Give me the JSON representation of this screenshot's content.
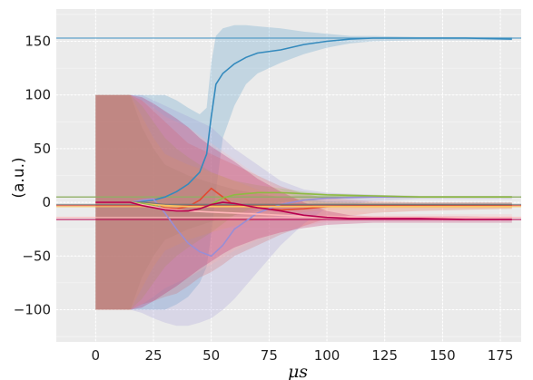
{
  "chart_data": {
    "type": "line",
    "title": "",
    "xlabel": "μs",
    "ylabel": "(a.u.)",
    "xlim": [
      -17,
      184
    ],
    "ylim": [
      -130,
      180
    ],
    "xticks": [
      0,
      25,
      50,
      75,
      100,
      125,
      150,
      175
    ],
    "yticks": [
      -100,
      -50,
      0,
      50,
      100,
      150
    ],
    "grid": true,
    "legend": "none",
    "background": "#ebebeb",
    "series": [
      {
        "color": "#348abd",
        "target": 153,
        "x": [
          0,
          15,
          20,
          25,
          30,
          35,
          40,
          45,
          48,
          50,
          52,
          55,
          60,
          65,
          70,
          80,
          90,
          100,
          110,
          120,
          140,
          160,
          180
        ],
        "y": [
          0,
          0,
          1,
          2,
          5,
          10,
          17,
          28,
          45,
          80,
          110,
          120,
          129,
          135,
          139,
          142,
          147,
          150,
          152,
          153,
          153,
          153,
          152
        ],
        "upper": [
          100,
          100,
          100,
          100,
          100,
          95,
          88,
          82,
          88,
          130,
          155,
          162,
          165,
          165,
          164,
          162,
          159,
          157,
          155,
          155,
          154,
          154,
          154
        ],
        "lower": [
          -100,
          -100,
          -100,
          -100,
          -100,
          -95,
          -88,
          -75,
          -60,
          -30,
          10,
          60,
          90,
          110,
          120,
          130,
          138,
          144,
          148,
          150,
          151,
          151,
          151
        ]
      },
      {
        "color": "#e24a33",
        "target": -3,
        "x": [
          0,
          15,
          20,
          25,
          30,
          35,
          40,
          45,
          50,
          55,
          60,
          70,
          80,
          90,
          100,
          120,
          140,
          160,
          180
        ],
        "y": [
          0,
          0,
          -2,
          -3,
          -5,
          -6,
          -4,
          2,
          13,
          5,
          -3,
          -5,
          -7,
          -6,
          -4,
          -3,
          -3,
          -3,
          -3
        ],
        "upper": [
          100,
          100,
          95,
          85,
          75,
          65,
          55,
          50,
          45,
          40,
          35,
          25,
          15,
          8,
          4,
          1,
          0,
          0,
          0
        ],
        "lower": [
          -100,
          -100,
          -95,
          -92,
          -88,
          -85,
          -78,
          -70,
          -65,
          -58,
          -50,
          -40,
          -30,
          -22,
          -15,
          -10,
          -8,
          -7,
          -6
        ]
      },
      {
        "color": "#988ed5",
        "target": 5,
        "x": [
          0,
          15,
          20,
          25,
          30,
          35,
          40,
          45,
          50,
          55,
          60,
          70,
          80,
          90,
          100,
          120,
          140,
          160,
          180
        ],
        "y": [
          0,
          0,
          2,
          3,
          -10,
          -25,
          -38,
          -46,
          -50,
          -40,
          -25,
          -10,
          -2,
          2,
          4,
          5,
          5,
          5,
          5
        ],
        "upper": [
          100,
          100,
          100,
          95,
          90,
          85,
          80,
          75,
          70,
          60,
          50,
          35,
          20,
          12,
          9,
          7,
          6,
          6,
          6
        ],
        "lower": [
          -100,
          -100,
          -103,
          -108,
          -112,
          -115,
          -115,
          -112,
          -108,
          -100,
          -90,
          -65,
          -40,
          -20,
          -5,
          1,
          3,
          3,
          3
        ]
      },
      {
        "color": "#777777",
        "target": -2,
        "x": [
          0,
          15,
          20,
          25,
          30,
          40,
          50,
          60,
          70,
          80,
          90,
          100,
          120,
          140,
          160,
          180
        ],
        "y": [
          0,
          0,
          0,
          -1,
          -2,
          -2,
          -2,
          -2,
          -2,
          -2,
          -2,
          -2,
          -2,
          -2,
          -2,
          -2
        ],
        "upper": [
          100,
          100,
          70,
          50,
          35,
          25,
          18,
          12,
          8,
          5,
          3,
          1,
          0,
          0,
          0,
          0
        ],
        "lower": [
          -100,
          -100,
          -70,
          -50,
          -35,
          -25,
          -18,
          -12,
          -8,
          -6,
          -5,
          -4,
          -3,
          -3,
          -3,
          -3
        ]
      },
      {
        "color": "#fbc15e",
        "target": -4,
        "x": [
          0,
          15,
          20,
          25,
          30,
          40,
          50,
          60,
          70,
          80,
          90,
          100,
          120,
          140,
          160,
          180
        ],
        "y": [
          0,
          0,
          -1,
          -2,
          -3,
          -4,
          -4,
          -4,
          -4,
          -4,
          -4,
          -4,
          -4,
          -4,
          -4,
          -4
        ],
        "upper": [
          100,
          100,
          80,
          60,
          45,
          35,
          28,
          20,
          12,
          6,
          2,
          0,
          -1,
          -2,
          -2,
          -2
        ],
        "lower": [
          -100,
          -100,
          -80,
          -60,
          -45,
          -35,
          -28,
          -22,
          -16,
          -12,
          -9,
          -7,
          -6,
          -6,
          -6,
          -6
        ]
      },
      {
        "color": "#8eba42",
        "target": 5,
        "x": [
          0,
          15,
          20,
          25,
          30,
          35,
          40,
          45,
          50,
          55,
          60,
          70,
          80,
          90,
          100,
          120,
          140,
          160,
          180
        ],
        "y": [
          0,
          0,
          -1,
          -3,
          -6,
          -7,
          -8,
          -6,
          -2,
          4,
          7,
          9,
          9,
          8,
          7,
          6,
          5,
          5,
          5
        ],
        "upper": [
          100,
          100,
          90,
          75,
          60,
          50,
          42,
          35,
          28,
          24,
          20,
          16,
          13,
          10,
          8,
          7,
          6,
          6,
          6
        ],
        "lower": [
          -100,
          -100,
          -90,
          -75,
          -60,
          -50,
          -42,
          -35,
          -28,
          -20,
          -12,
          -4,
          0,
          2,
          3,
          4,
          4,
          4,
          4
        ]
      },
      {
        "color": "#ffb5b8",
        "target": -14,
        "x": [
          0,
          15,
          20,
          25,
          30,
          40,
          50,
          60,
          70,
          80,
          90,
          100,
          120,
          140,
          160,
          180
        ],
        "y": [
          0,
          0,
          -2,
          -4,
          -6,
          -8,
          -9,
          -10,
          -11,
          -12,
          -13,
          -13,
          -14,
          -14,
          -14,
          -14
        ],
        "upper": [
          100,
          100,
          95,
          88,
          80,
          70,
          55,
          40,
          25,
          12,
          2,
          -5,
          -10,
          -11,
          -11,
          -11
        ],
        "lower": [
          -100,
          -100,
          -95,
          -88,
          -80,
          -70,
          -58,
          -45,
          -35,
          -28,
          -22,
          -18,
          -17,
          -17,
          -17,
          -17
        ]
      },
      {
        "color": "#b8004f",
        "target": -16,
        "x": [
          0,
          15,
          20,
          25,
          30,
          35,
          40,
          45,
          50,
          55,
          60,
          65,
          70,
          80,
          90,
          100,
          110,
          120,
          140,
          160,
          180
        ],
        "y": [
          0,
          0,
          -3,
          -5,
          -7,
          -8,
          -8,
          -6,
          -2,
          0,
          -1,
          -3,
          -5,
          -8,
          -12,
          -14,
          -15,
          -15,
          -15,
          -16,
          -16
        ],
        "upper": [
          100,
          100,
          98,
          92,
          85,
          78,
          70,
          60,
          52,
          45,
          38,
          30,
          22,
          10,
          0,
          -8,
          -12,
          -13,
          -13,
          -13,
          -14
        ],
        "lower": [
          -100,
          -100,
          -98,
          -92,
          -85,
          -78,
          -70,
          -62,
          -55,
          -48,
          -42,
          -38,
          -34,
          -28,
          -24,
          -21,
          -20,
          -19,
          -19,
          -19,
          -19
        ]
      }
    ]
  }
}
